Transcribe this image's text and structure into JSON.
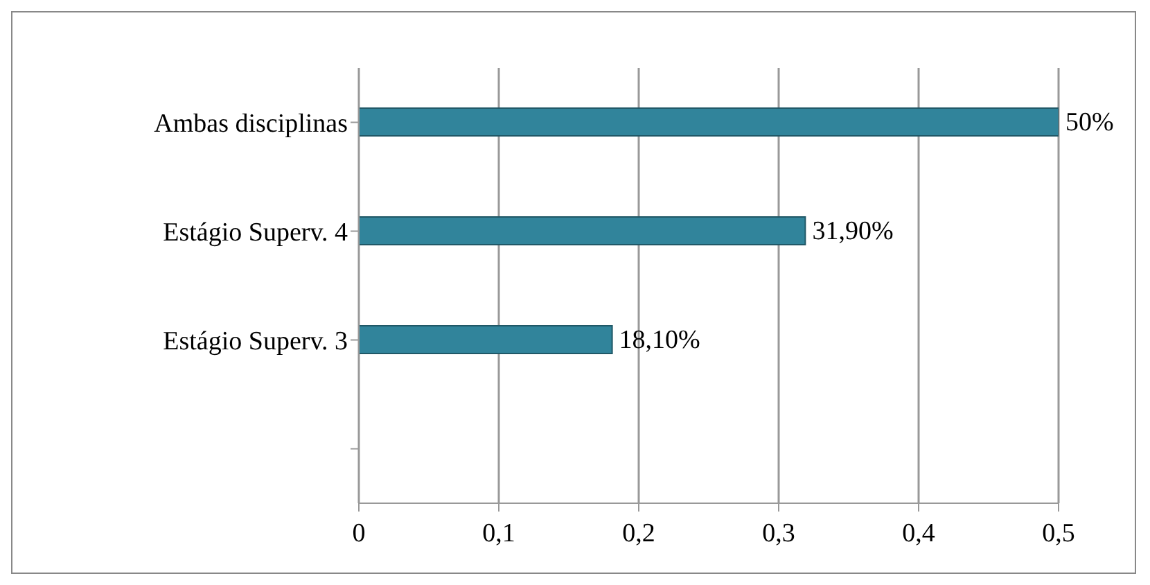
{
  "chart_data": {
    "type": "bar",
    "orientation": "horizontal",
    "categories": [
      "Ambas disciplinas",
      "Estágio Superv. 4",
      "Estágio Superv. 3",
      null
    ],
    "values": [
      0.5,
      0.319,
      0.181,
      null
    ],
    "value_labels": [
      "50%",
      "31,90%",
      "18,10%",
      null
    ],
    "color": "#31849b",
    "xlim": [
      0,
      0.5
    ],
    "xticks": [
      0,
      {
        "value": 0.1,
        "label": "0,1"
      },
      {
        "value": 0.2,
        "label": "0,2"
      },
      {
        "value": 0.3,
        "label": "0,3"
      },
      {
        "value": 0.4,
        "label": "0,4"
      },
      {
        "value": 0.5,
        "label": "0,5"
      }
    ],
    "grid": "x"
  }
}
